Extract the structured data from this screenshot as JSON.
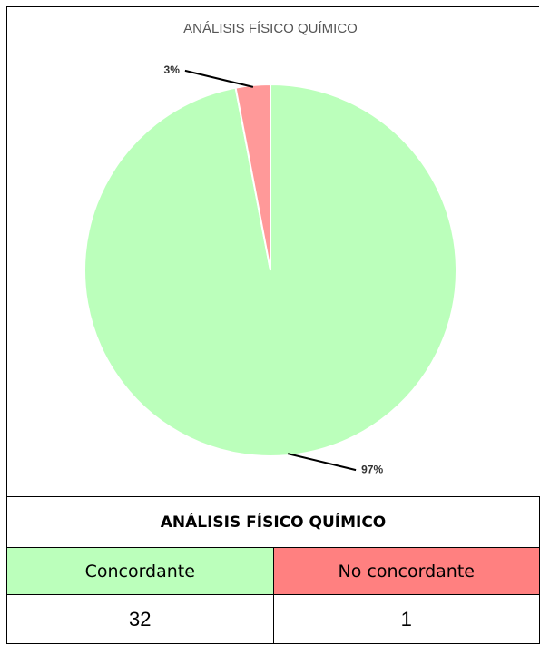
{
  "chart_data": {
    "type": "pie",
    "title": "ANÁLISIS FÍSICO QUÍMICO",
    "values": [
      97,
      3
    ],
    "value_labels": [
      "97%",
      "3%"
    ],
    "colors": [
      "#bbffbb",
      "#ff9999"
    ]
  },
  "table": {
    "title": "ANÁLISIS FÍSICO QUÍMICO",
    "headers": [
      "Concordante",
      "No concordante"
    ],
    "header_colors": [
      "#bbffbb",
      "#ff8080"
    ],
    "rows": [
      [
        32,
        1
      ]
    ]
  }
}
